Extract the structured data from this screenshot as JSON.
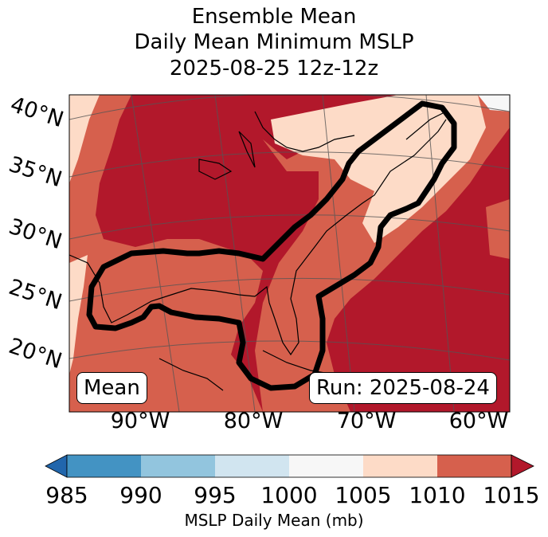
{
  "title": {
    "line1": "Ensemble Mean",
    "line2": "Daily Mean Minimum MSLP",
    "line3": "2025-08-25 12z-12z"
  },
  "lat_labels": [
    "40°N",
    "35°N",
    "30°N",
    "25°N",
    "20°N"
  ],
  "lon_labels": [
    "90°W",
    "80°W",
    "70°W",
    "60°W"
  ],
  "box_left": "Mean",
  "box_right": "Run: 2025-08-24",
  "colorbar": {
    "ticks": [
      "985",
      "990",
      "995",
      "1000",
      "1005",
      "1010",
      "1015"
    ],
    "colors": [
      "#2166ac",
      "#4393c3",
      "#92c5de",
      "#d1e5f0",
      "#f7f7f7",
      "#fddbc7",
      "#d6604d",
      "#b2182b"
    ],
    "label": "MSLP Daily Mean (mb)"
  }
}
